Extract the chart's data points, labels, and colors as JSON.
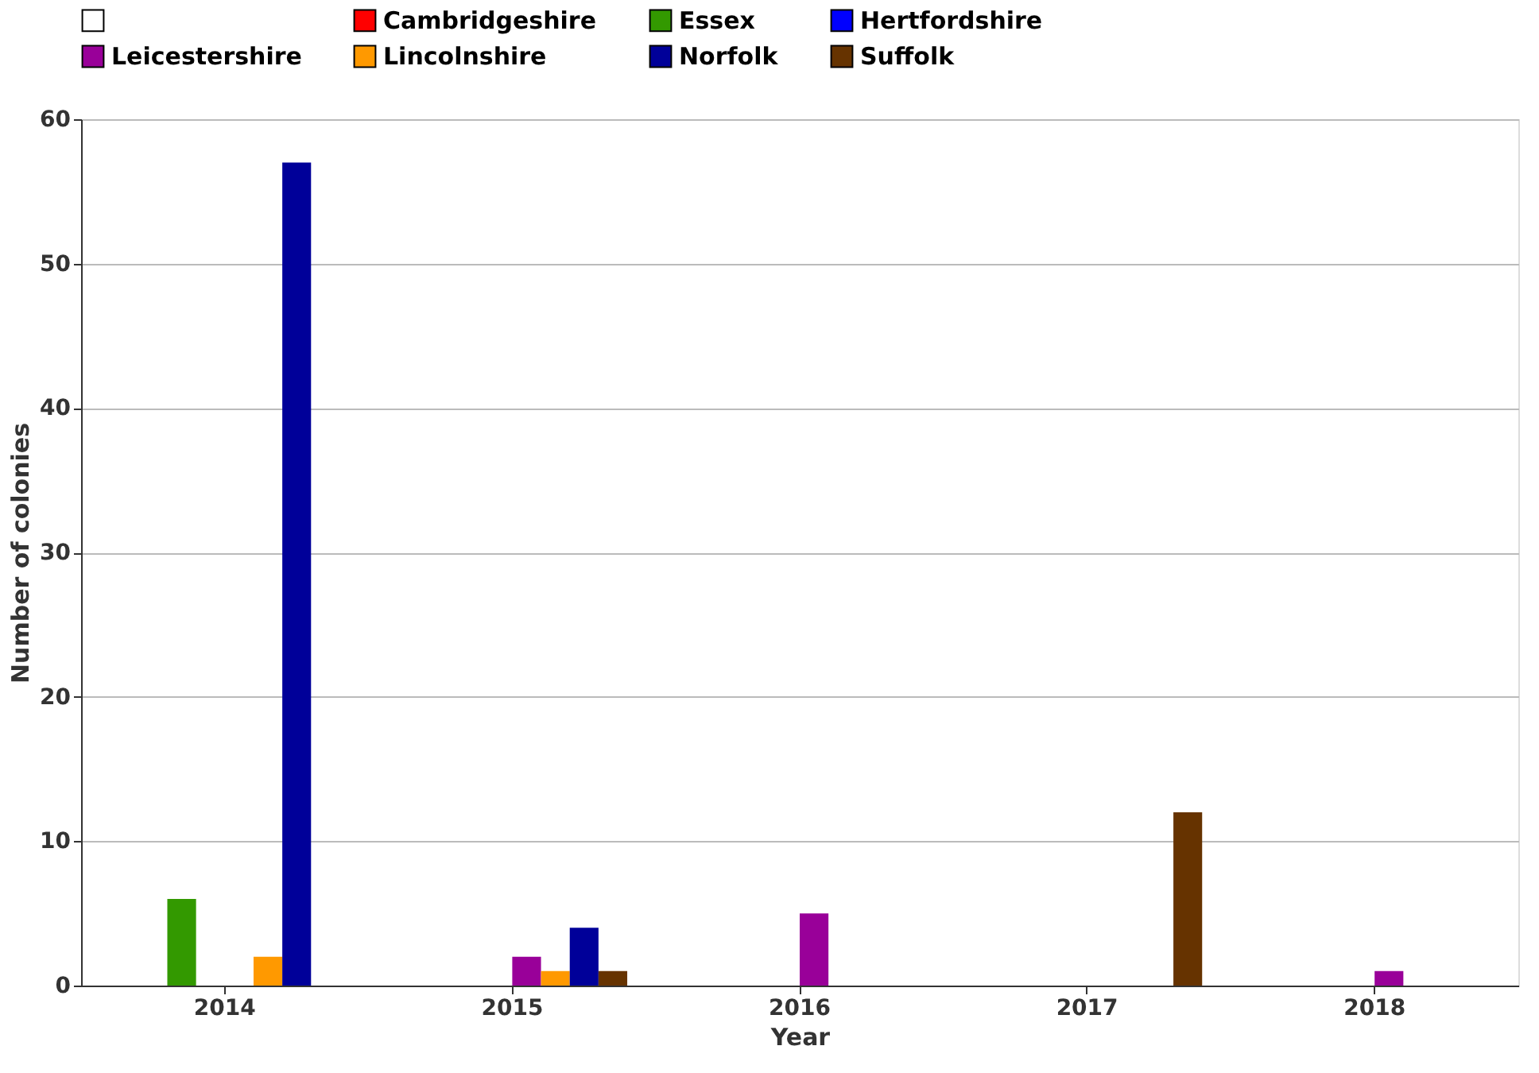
{
  "chart_data": {
    "type": "bar",
    "xlabel": "Year",
    "ylabel": "Number of colonies",
    "categories": [
      "2014",
      "2015",
      "2016",
      "2017",
      "2018"
    ],
    "series": [
      {
        "color": "#ffffff",
        "values": [
          0,
          0,
          0,
          0,
          0
        ]
      },
      {
        "name": "Cambridgeshire",
        "color": "#ff0000",
        "values": [
          0,
          0,
          0,
          0,
          0
        ]
      },
      {
        "name": "Essex",
        "color": "#339900",
        "values": [
          6,
          0,
          0,
          0,
          0
        ]
      },
      {
        "name": "Hertfordshire",
        "color": "#0000ff",
        "values": [
          0,
          0,
          0,
          0,
          0
        ]
      },
      {
        "name": "Leicestershire",
        "color": "#990099",
        "values": [
          0,
          2,
          5,
          0,
          1
        ]
      },
      {
        "name": "Lincolnshire",
        "color": "#ff9900",
        "values": [
          2,
          1,
          0,
          0,
          0
        ]
      },
      {
        "name": "Norfolk",
        "color": "#000099",
        "values": [
          57,
          4,
          0,
          0,
          0
        ]
      },
      {
        "name": "Suffolk",
        "color": "#663300",
        "values": [
          0,
          1,
          0,
          12,
          0
        ]
      }
    ],
    "ylim": [
      0,
      60
    ],
    "yticks": [
      0,
      10,
      20,
      30,
      40,
      50,
      60
    ],
    "grid": "y",
    "legend": "top"
  }
}
